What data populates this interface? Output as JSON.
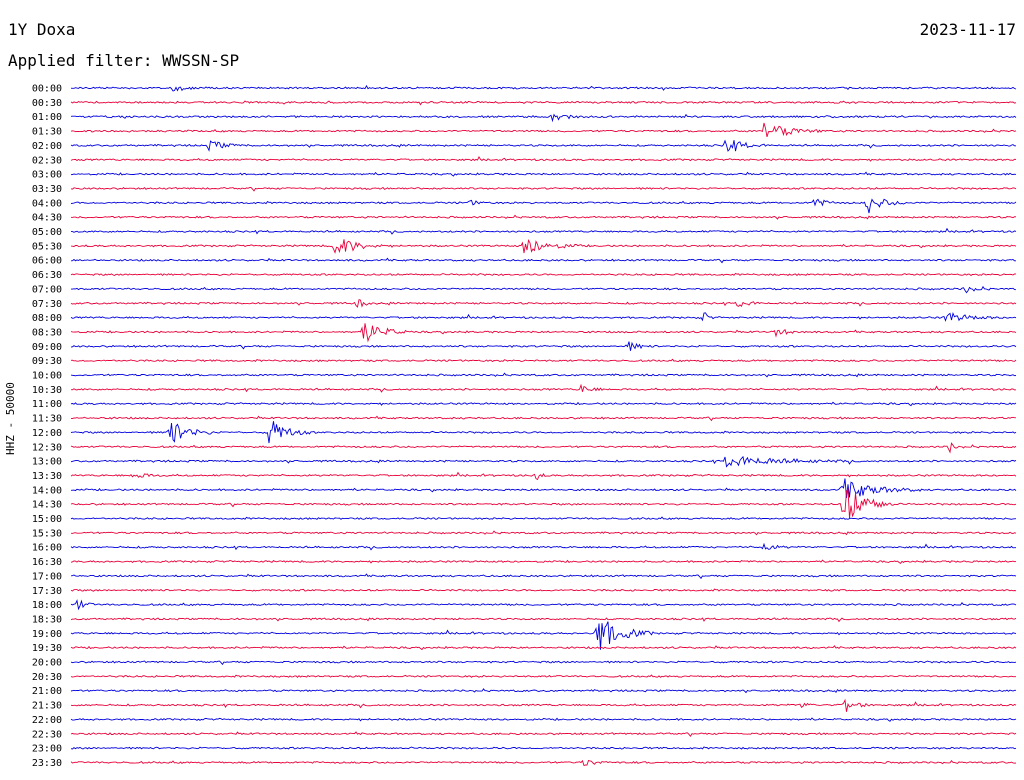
{
  "header": {
    "station": "1Y Doxa",
    "date": "2023-11-17",
    "filter": "Applied filter: WWSSN-SP"
  },
  "axis": {
    "label": "HHZ - 50000"
  },
  "colors": {
    "even": "#0000dd",
    "odd": "#e8003a"
  },
  "chart_data": {
    "type": "line",
    "title": "1Y Doxa",
    "subtitle": "Applied filter: WWSSN-SP",
    "ylabel": "HHZ - 50000",
    "y_tick_labels": [
      "00:00",
      "00:30",
      "01:00",
      "01:30",
      "02:00",
      "02:30",
      "03:00",
      "03:30",
      "04:00",
      "04:30",
      "05:00",
      "05:30",
      "06:00",
      "06:30",
      "07:00",
      "07:30",
      "08:00",
      "08:30",
      "09:00",
      "09:30",
      "10:00",
      "10:30",
      "11:00",
      "11:30",
      "12:00",
      "12:30",
      "13:00",
      "13:30",
      "14:00",
      "14:30",
      "15:00",
      "15:30",
      "16:00",
      "16:30",
      "17:00",
      "17:30",
      "18:00",
      "18:30",
      "19:00",
      "19:30",
      "20:00",
      "20:30",
      "21:00",
      "21:30",
      "22:00",
      "22:30",
      "23:00",
      "23:30"
    ],
    "trace_minutes": 30,
    "grid": false,
    "legend": "none",
    "events": [
      {
        "row": 0,
        "min": 3.2,
        "amp": 3,
        "dur": 1.2
      },
      {
        "row": 2,
        "min": 15.3,
        "amp": 4,
        "dur": 1.2
      },
      {
        "row": 3,
        "min": 22.0,
        "amp": 9,
        "dur": 2.0
      },
      {
        "row": 4,
        "min": 4.4,
        "amp": 5,
        "dur": 1.2
      },
      {
        "row": 4,
        "min": 20.8,
        "amp": 8,
        "dur": 1.3
      },
      {
        "row": 8,
        "min": 12.6,
        "amp": 3,
        "dur": 0.8
      },
      {
        "row": 8,
        "min": 23.6,
        "amp": 5,
        "dur": 0.9
      },
      {
        "row": 8,
        "min": 25.3,
        "amp": 11,
        "dur": 1.2
      },
      {
        "row": 11,
        "min": 8.4,
        "amp": 11,
        "dur": 1.6
      },
      {
        "row": 11,
        "min": 14.4,
        "amp": 10,
        "dur": 1.8
      },
      {
        "row": 14,
        "min": 28.4,
        "amp": 4,
        "dur": 0.8
      },
      {
        "row": 15,
        "min": 9.1,
        "amp": 5,
        "dur": 0.5
      },
      {
        "row": 15,
        "min": 21.2,
        "amp": 5,
        "dur": 0.8
      },
      {
        "row": 16,
        "min": 20.1,
        "amp": 6,
        "dur": 0.3
      },
      {
        "row": 16,
        "min": 27.8,
        "amp": 5,
        "dur": 1.8
      },
      {
        "row": 17,
        "min": 9.3,
        "amp": 13,
        "dur": 1.4
      },
      {
        "row": 17,
        "min": 22.4,
        "amp": 4,
        "dur": 0.9
      },
      {
        "row": 18,
        "min": 17.7,
        "amp": 5,
        "dur": 0.8
      },
      {
        "row": 21,
        "min": 16.2,
        "amp": 5,
        "dur": 0.8
      },
      {
        "row": 24,
        "min": 3.1,
        "amp": 14,
        "dur": 1.5
      },
      {
        "row": 24,
        "min": 6.3,
        "amp": 15,
        "dur": 1.3
      },
      {
        "row": 25,
        "min": 27.9,
        "amp": 6,
        "dur": 0.3
      },
      {
        "row": 26,
        "min": 20.8,
        "amp": 6,
        "dur": 4.0
      },
      {
        "row": 27,
        "min": 2.0,
        "amp": 4,
        "dur": 0.9
      },
      {
        "row": 27,
        "min": 14.8,
        "amp": 6,
        "dur": 0.3
      },
      {
        "row": 28,
        "min": 24.5,
        "amp": 11,
        "dur": 2.5
      },
      {
        "row": 29,
        "min": 24.5,
        "amp": 26,
        "dur": 1.6
      },
      {
        "row": 32,
        "min": 22.0,
        "amp": 4,
        "dur": 0.9
      },
      {
        "row": 36,
        "min": 0.2,
        "amp": 6,
        "dur": 0.6
      },
      {
        "row": 38,
        "min": 16.7,
        "amp": 20,
        "dur": 1.8
      },
      {
        "row": 43,
        "min": 24.6,
        "amp": 8,
        "dur": 0.8
      },
      {
        "row": 43,
        "min": 23.2,
        "amp": 4,
        "dur": 0.4
      },
      {
        "row": 47,
        "min": 16.3,
        "amp": 4,
        "dur": 0.8
      }
    ]
  }
}
